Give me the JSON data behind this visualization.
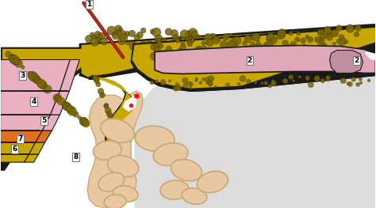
{
  "bg_white": "#ffffff",
  "bg_gray": "#dcdcdc",
  "black": "#1a1a1a",
  "fat_yellow": "#c8a800",
  "fat_dark": "#7a6600",
  "fat_olive": "#a89000",
  "muscle_pink": "#e8b0c0",
  "muscle_dark_pink": "#d090a0",
  "orange_layer": "#e07020",
  "yellow_layer": "#d4b800",
  "bowel_peach": "#e8c8a0",
  "bowel_peach_dark": "#c8a870",
  "hernia_pink": "#e0a8b8",
  "needle_red": "#cc2222",
  "needle_dark": "#660000",
  "white": "#ffffff",
  "label_fc": "#ffffff",
  "label_ec": "#666666"
}
